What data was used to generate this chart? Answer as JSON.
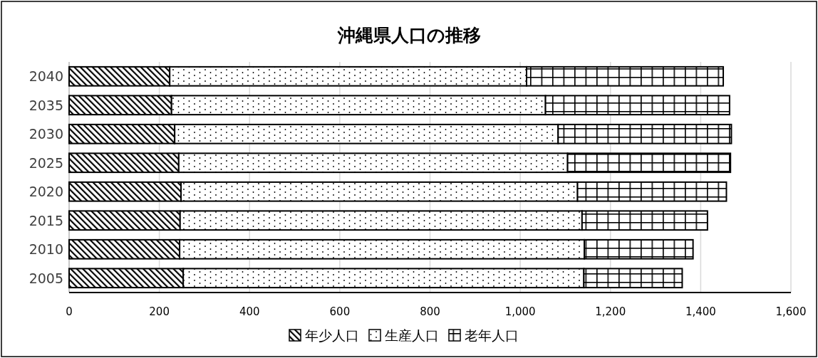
{
  "chart_data": {
    "type": "bar",
    "orientation": "horizontal",
    "stacked": true,
    "title": "沖縄県人口の推移",
    "categories": [
      "2040",
      "2035",
      "2030",
      "2025",
      "2020",
      "2015",
      "2010",
      "2005"
    ],
    "series": [
      {
        "name": "年少人口",
        "color": "#000000",
        "values": [
          223,
          227,
          234,
          243,
          248,
          246,
          245,
          253
        ]
      },
      {
        "name": "生産人口",
        "color": "#000000",
        "values": [
          791,
          829,
          850,
          862,
          879,
          891,
          897,
          888
        ]
      },
      {
        "name": "老年人口",
        "color": "#000000",
        "values": [
          436,
          408,
          384,
          361,
          330,
          278,
          241,
          218
        ]
      }
    ],
    "xlim": [
      0,
      1600
    ],
    "xticks": [
      0,
      200,
      400,
      600,
      800,
      {
        "value": 1000,
        "label": "1,000"
      },
      {
        "value": 1200,
        "label": "1,200"
      },
      {
        "value": 1400,
        "label": "1,400"
      },
      {
        "value": 1600,
        "label": "1,600"
      }
    ],
    "grid": "x",
    "legend": "bottom"
  }
}
